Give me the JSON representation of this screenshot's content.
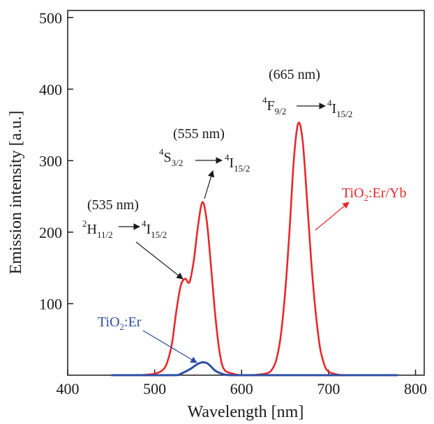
{
  "chart_data": {
    "type": "line",
    "xlabel": "Wavelength [nm]",
    "ylabel": "Emission intensity [a.u.]",
    "xlim": [
      400,
      810
    ],
    "ylim": [
      0,
      510
    ],
    "x_ticks": [
      400,
      500,
      600,
      700,
      800
    ],
    "y_ticks": [
      100,
      200,
      300,
      400,
      500
    ],
    "grid": false,
    "series": [
      {
        "name": "TiO2:Er/Yb",
        "color": "#e8282b",
        "x": [
          450,
          480,
          500,
          510,
          515,
          520,
          525,
          530,
          535,
          540,
          545,
          550,
          555,
          560,
          565,
          570,
          575,
          580,
          590,
          600,
          610,
          620,
          630,
          635,
          640,
          645,
          650,
          655,
          660,
          665,
          670,
          675,
          680,
          685,
          690,
          695,
          700,
          710,
          720,
          740,
          760,
          780
        ],
        "y": [
          0,
          0,
          2,
          8,
          20,
          45,
          90,
          125,
          135,
          130,
          160,
          210,
          242,
          215,
          150,
          80,
          30,
          8,
          2,
          0,
          0,
          1,
          3,
          8,
          22,
          55,
          115,
          200,
          300,
          352,
          330,
          250,
          160,
          90,
          40,
          15,
          5,
          1,
          0,
          0,
          0,
          0
        ]
      },
      {
        "name": "TiO2:Er",
        "color": "#2c4fa3",
        "x": [
          450,
          520,
          530,
          540,
          545,
          550,
          555,
          560,
          565,
          570,
          580,
          590,
          600,
          650,
          700,
          780
        ],
        "y": [
          0,
          0,
          2,
          8,
          12,
          16,
          18,
          17,
          12,
          6,
          1,
          0,
          0,
          0,
          0,
          0
        ]
      }
    ],
    "annotations": {
      "a535": {
        "wavelength": "(535 nm)",
        "start_letter": "H",
        "start_super": "2",
        "start_sub": "11/2",
        "end_letter": "I",
        "end_super": "4",
        "end_sub": "15/2"
      },
      "a555": {
        "wavelength": "(555 nm)",
        "start_letter": "S",
        "start_super": "4",
        "start_sub": "3/2",
        "end_letter": "I",
        "end_super": "4",
        "end_sub": "15/2"
      },
      "a665": {
        "wavelength": "(665 nm)",
        "start_letter": "F",
        "start_super": "4",
        "start_sub": "9/2",
        "end_letter": "I",
        "end_super": "4",
        "end_sub": "15/2"
      }
    },
    "legend_labels": {
      "red": {
        "prefix": "TiO",
        "sub": "2",
        "suffix": ":Er/Yb"
      },
      "blue": {
        "prefix": "TiO",
        "sub": "2",
        "suffix": ":Er"
      }
    }
  }
}
